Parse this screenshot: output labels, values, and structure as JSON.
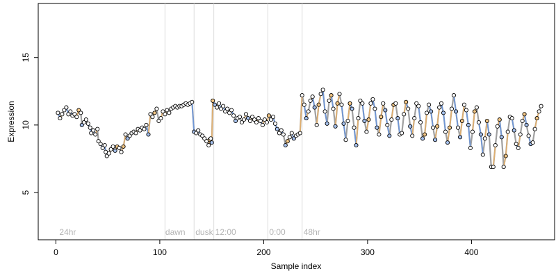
{
  "chart_data": {
    "type": "scatter",
    "title": "",
    "xlabel": "Sample index",
    "ylabel": "Expression",
    "xlim": [
      -17,
      480
    ],
    "ylim": [
      1.5,
      19
    ],
    "x_ticks": [
      0,
      100,
      200,
      300,
      400
    ],
    "y_ticks": [
      5,
      10,
      15
    ],
    "grid": false,
    "legend": "none",
    "colors": {
      "line_main": "#a0a0a0",
      "line_blue": "#6a96dc",
      "line_orange": "#e6b06a",
      "point_stroke": "#000000",
      "fill_white": "#ffffff",
      "fill_blue": "#a5c0ec",
      "fill_orange": "#f2c685",
      "vline": "#dcdcdc",
      "annotation": "#b4b4b4"
    },
    "annotations": [
      {
        "x": 2,
        "label": "24hr"
      },
      {
        "x": 104,
        "label": "dawn"
      },
      {
        "x": 133,
        "label": "dusk"
      },
      {
        "x": 152,
        "label": "12:00"
      },
      {
        "x": 204,
        "label": "0:00"
      },
      {
        "x": 237,
        "label": "48hr"
      }
    ],
    "vertical_lines": [
      105,
      133,
      152,
      204,
      237
    ],
    "series": [
      {
        "values": [
          [
            2,
            10.9
          ],
          [
            4,
            10.5
          ],
          [
            6,
            10.8
          ],
          [
            8,
            11.1
          ],
          [
            10,
            11.3
          ],
          [
            12,
            10.8
          ],
          [
            14,
            11.0
          ],
          [
            16,
            10.7
          ],
          [
            18,
            10.8
          ],
          [
            20,
            10.6
          ],
          [
            22,
            11.1
          ],
          [
            24,
            10.9
          ],
          [
            25,
            10.0
          ],
          [
            27,
            10.2
          ],
          [
            29,
            10.4
          ],
          [
            31,
            10.1
          ],
          [
            33,
            9.8
          ],
          [
            34,
            9.4
          ],
          [
            36,
            9.6
          ],
          [
            38,
            9.3
          ],
          [
            40,
            9.7
          ],
          [
            41,
            8.8
          ],
          [
            43,
            8.6
          ],
          [
            45,
            8.3
          ],
          [
            47,
            8.5
          ],
          [
            48,
            8.0
          ],
          [
            49,
            7.7
          ],
          [
            51,
            7.9
          ],
          [
            53,
            8.2
          ],
          [
            55,
            8.4
          ],
          [
            57,
            8.1
          ],
          [
            59,
            8.4
          ],
          [
            61,
            8.3
          ],
          [
            63,
            8.0
          ],
          [
            65,
            8.4
          ],
          [
            67,
            9.3
          ],
          [
            69,
            9.0
          ],
          [
            71,
            9.2
          ],
          [
            73,
            9.4
          ],
          [
            75,
            9.5
          ],
          [
            77,
            9.4
          ],
          [
            79,
            9.7
          ],
          [
            81,
            9.6
          ],
          [
            83,
            9.8
          ],
          [
            85,
            9.7
          ],
          [
            87,
            10.0
          ],
          [
            89,
            9.3
          ],
          [
            91,
            10.8
          ],
          [
            93,
            10.6
          ],
          [
            95,
            10.9
          ],
          [
            97,
            11.2
          ],
          [
            99,
            10.3
          ],
          [
            101,
            10.5
          ],
          [
            103,
            11.0
          ],
          [
            105,
            10.8
          ],
          [
            107,
            11.1
          ],
          [
            109,
            10.9
          ],
          [
            111,
            11.2
          ],
          [
            113,
            11.3
          ],
          [
            115,
            11.4
          ],
          [
            117,
            11.3
          ],
          [
            119,
            11.4
          ],
          [
            121,
            11.4
          ],
          [
            123,
            11.5
          ],
          [
            125,
            11.6
          ],
          [
            127,
            11.5
          ],
          [
            129,
            11.6
          ],
          [
            131,
            11.7
          ],
          [
            133,
            9.5
          ],
          [
            135,
            9.4
          ],
          [
            137,
            9.6
          ],
          [
            139,
            9.3
          ],
          [
            141,
            9.2
          ],
          [
            143,
            9.0
          ],
          [
            145,
            8.8
          ],
          [
            147,
            8.5
          ],
          [
            148,
            8.9
          ],
          [
            149,
            9.0
          ],
          [
            150,
            8.7
          ],
          [
            151,
            11.8
          ],
          [
            153,
            11.5
          ],
          [
            155,
            11.3
          ],
          [
            157,
            11.6
          ],
          [
            159,
            11.2
          ],
          [
            161,
            11.4
          ],
          [
            163,
            11.0
          ],
          [
            165,
            11.2
          ],
          [
            167,
            10.9
          ],
          [
            169,
            11.1
          ],
          [
            171,
            10.7
          ],
          [
            173,
            10.3
          ],
          [
            175,
            10.5
          ],
          [
            177,
            10.6
          ],
          [
            179,
            10.2
          ],
          [
            181,
            10.4
          ],
          [
            183,
            10.8
          ],
          [
            185,
            10.5
          ],
          [
            187,
            10.3
          ],
          [
            189,
            10.6
          ],
          [
            191,
            10.4
          ],
          [
            193,
            10.2
          ],
          [
            195,
            10.5
          ],
          [
            197,
            10.3
          ],
          [
            199,
            10.0
          ],
          [
            201,
            10.4
          ],
          [
            203,
            10.2
          ],
          [
            205,
            10.7
          ],
          [
            207,
            10.4
          ],
          [
            209,
            10.6
          ],
          [
            211,
            10.1
          ],
          [
            213,
            9.7
          ],
          [
            215,
            9.4
          ],
          [
            217,
            9.6
          ],
          [
            219,
            9.3
          ],
          [
            221,
            8.5
          ],
          [
            223,
            8.8
          ],
          [
            225,
            9.1
          ],
          [
            227,
            9.4
          ],
          [
            229,
            9.0
          ],
          [
            231,
            9.2
          ],
          [
            233,
            9.3
          ],
          [
            235,
            9.4
          ],
          [
            237,
            12.2
          ],
          [
            239,
            11.5
          ],
          [
            241,
            10.5
          ],
          [
            243,
            11.0
          ],
          [
            245,
            11.8
          ],
          [
            247,
            12.1
          ],
          [
            249,
            11.3
          ],
          [
            251,
            10.0
          ],
          [
            253,
            11.5
          ],
          [
            255,
            12.3
          ],
          [
            257,
            12.6
          ],
          [
            259,
            11.0
          ],
          [
            261,
            10.1
          ],
          [
            263,
            11.8
          ],
          [
            265,
            12.2
          ],
          [
            267,
            11.2
          ],
          [
            269,
            9.9
          ],
          [
            271,
            11.6
          ],
          [
            273,
            12.3
          ],
          [
            275,
            11.5
          ],
          [
            277,
            10.1
          ],
          [
            279,
            8.9
          ],
          [
            281,
            10.3
          ],
          [
            283,
            11.6
          ],
          [
            285,
            11.2
          ],
          [
            287,
            9.8
          ],
          [
            289,
            8.5
          ],
          [
            291,
            10.5
          ],
          [
            293,
            11.8
          ],
          [
            295,
            11.6
          ],
          [
            297,
            10.3
          ],
          [
            299,
            9.5
          ],
          [
            301,
            10.4
          ],
          [
            303,
            11.6
          ],
          [
            305,
            11.9
          ],
          [
            307,
            11.2
          ],
          [
            309,
            9.8
          ],
          [
            311,
            9.3
          ],
          [
            313,
            10.6
          ],
          [
            315,
            11.6
          ],
          [
            317,
            11.1
          ],
          [
            319,
            10.0
          ],
          [
            321,
            9.2
          ],
          [
            323,
            10.4
          ],
          [
            325,
            11.5
          ],
          [
            327,
            11.6
          ],
          [
            329,
            10.5
          ],
          [
            331,
            9.3
          ],
          [
            333,
            9.4
          ],
          [
            335,
            10.8
          ],
          [
            337,
            11.7
          ],
          [
            339,
            11.2
          ],
          [
            341,
            9.9
          ],
          [
            343,
            9.2
          ],
          [
            345,
            10.5
          ],
          [
            347,
            11.6
          ],
          [
            349,
            11.4
          ],
          [
            351,
            10.2
          ],
          [
            353,
            9.0
          ],
          [
            355,
            9.3
          ],
          [
            357,
            10.9
          ],
          [
            359,
            11.5
          ],
          [
            361,
            11.0
          ],
          [
            363,
            9.8
          ],
          [
            365,
            8.9
          ],
          [
            367,
            9.9
          ],
          [
            369,
            11.3
          ],
          [
            371,
            11.6
          ],
          [
            373,
            10.9
          ],
          [
            375,
            9.5
          ],
          [
            377,
            8.7
          ],
          [
            379,
            9.8
          ],
          [
            381,
            11.2
          ],
          [
            383,
            12.2
          ],
          [
            385,
            11.0
          ],
          [
            387,
            9.8
          ],
          [
            389,
            9.1
          ],
          [
            391,
            10.3
          ],
          [
            393,
            11.5
          ],
          [
            395,
            11.1
          ],
          [
            397,
            10.0
          ],
          [
            399,
            8.3
          ],
          [
            401,
            9.5
          ],
          [
            403,
            11.0
          ],
          [
            405,
            11.3
          ],
          [
            407,
            10.2
          ],
          [
            409,
            9.3
          ],
          [
            411,
            7.8
          ],
          [
            413,
            9.0
          ],
          [
            415,
            10.3
          ],
          [
            417,
            9.3
          ],
          [
            419,
            6.9
          ],
          [
            421,
            6.9
          ],
          [
            423,
            8.5
          ],
          [
            425,
            9.9
          ],
          [
            427,
            10.4
          ],
          [
            429,
            9.1
          ],
          [
            431,
            6.9
          ],
          [
            433,
            7.7
          ],
          [
            435,
            9.5
          ],
          [
            437,
            10.6
          ],
          [
            439,
            10.5
          ],
          [
            441,
            9.6
          ],
          [
            443,
            8.6
          ],
          [
            445,
            8.3
          ],
          [
            447,
            9.3
          ],
          [
            449,
            10.3
          ],
          [
            451,
            10.8
          ],
          [
            453,
            10.0
          ],
          [
            455,
            9.2
          ],
          [
            457,
            8.6
          ],
          [
            459,
            8.7
          ],
          [
            461,
            9.7
          ],
          [
            463,
            10.5
          ],
          [
            465,
            11.0
          ],
          [
            467,
            11.4
          ]
        ]
      }
    ]
  }
}
